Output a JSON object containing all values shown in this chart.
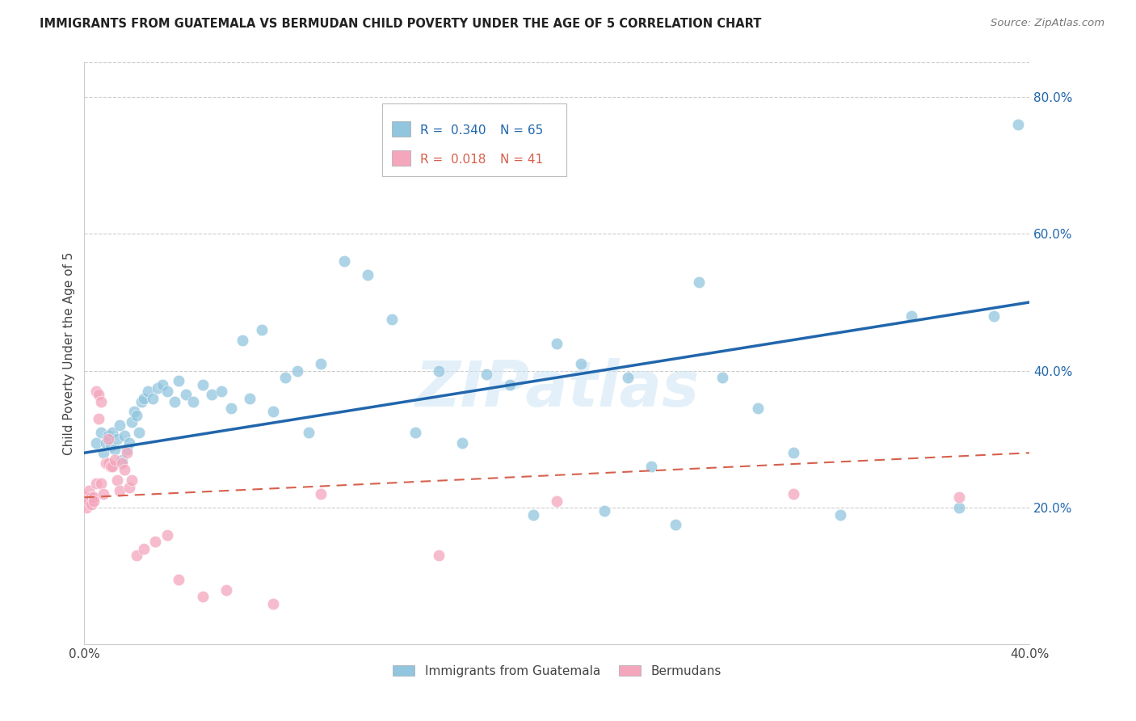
{
  "title": "IMMIGRANTS FROM GUATEMALA VS BERMUDAN CHILD POVERTY UNDER THE AGE OF 5 CORRELATION CHART",
  "source": "Source: ZipAtlas.com",
  "ylabel": "Child Poverty Under the Age of 5",
  "xlim": [
    0.0,
    0.4
  ],
  "ylim": [
    0.0,
    0.85
  ],
  "yticks": [
    0.2,
    0.4,
    0.6,
    0.8
  ],
  "ytick_labels": [
    "20.0%",
    "40.0%",
    "60.0%",
    "80.0%"
  ],
  "xticks": [
    0.0,
    0.1,
    0.2,
    0.3,
    0.4
  ],
  "xtick_labels": [
    "0.0%",
    "",
    "",
    "",
    "40.0%"
  ],
  "legend_r1": "0.340",
  "legend_n1": "65",
  "legend_r2": "0.018",
  "legend_n2": "41",
  "blue_color": "#92c5de",
  "blue_line_color": "#2166ac",
  "pink_color": "#f4a6bd",
  "pink_line_color": "#d6604d",
  "watermark": "ZIPatlas",
  "blue_scatter_x": [
    0.005,
    0.007,
    0.008,
    0.009,
    0.01,
    0.011,
    0.012,
    0.013,
    0.014,
    0.015,
    0.016,
    0.017,
    0.018,
    0.019,
    0.02,
    0.021,
    0.022,
    0.023,
    0.024,
    0.025,
    0.027,
    0.029,
    0.031,
    0.033,
    0.035,
    0.038,
    0.04,
    0.043,
    0.046,
    0.05,
    0.054,
    0.058,
    0.062,
    0.067,
    0.07,
    0.075,
    0.08,
    0.085,
    0.09,
    0.095,
    0.1,
    0.11,
    0.12,
    0.13,
    0.14,
    0.15,
    0.16,
    0.17,
    0.18,
    0.19,
    0.2,
    0.21,
    0.22,
    0.23,
    0.24,
    0.25,
    0.26,
    0.27,
    0.285,
    0.3,
    0.32,
    0.35,
    0.37,
    0.385,
    0.395
  ],
  "blue_scatter_y": [
    0.295,
    0.31,
    0.28,
    0.295,
    0.305,
    0.29,
    0.31,
    0.285,
    0.3,
    0.32,
    0.27,
    0.305,
    0.285,
    0.295,
    0.325,
    0.34,
    0.335,
    0.31,
    0.355,
    0.36,
    0.37,
    0.36,
    0.375,
    0.38,
    0.37,
    0.355,
    0.385,
    0.365,
    0.355,
    0.38,
    0.365,
    0.37,
    0.345,
    0.445,
    0.36,
    0.46,
    0.34,
    0.39,
    0.4,
    0.31,
    0.41,
    0.56,
    0.54,
    0.475,
    0.31,
    0.4,
    0.295,
    0.395,
    0.38,
    0.19,
    0.44,
    0.41,
    0.195,
    0.39,
    0.26,
    0.175,
    0.53,
    0.39,
    0.345,
    0.28,
    0.19,
    0.48,
    0.2,
    0.48,
    0.76
  ],
  "pink_scatter_x": [
    0.001,
    0.001,
    0.002,
    0.002,
    0.003,
    0.003,
    0.004,
    0.004,
    0.005,
    0.005,
    0.006,
    0.006,
    0.007,
    0.007,
    0.008,
    0.009,
    0.01,
    0.01,
    0.011,
    0.012,
    0.013,
    0.014,
    0.015,
    0.016,
    0.017,
    0.018,
    0.019,
    0.02,
    0.022,
    0.025,
    0.03,
    0.035,
    0.04,
    0.05,
    0.06,
    0.08,
    0.1,
    0.15,
    0.2,
    0.3,
    0.37
  ],
  "pink_scatter_y": [
    0.215,
    0.2,
    0.21,
    0.225,
    0.215,
    0.205,
    0.215,
    0.21,
    0.235,
    0.37,
    0.365,
    0.33,
    0.355,
    0.235,
    0.22,
    0.265,
    0.265,
    0.3,
    0.26,
    0.26,
    0.27,
    0.24,
    0.225,
    0.265,
    0.255,
    0.28,
    0.23,
    0.24,
    0.13,
    0.14,
    0.15,
    0.16,
    0.095,
    0.07,
    0.08,
    0.06,
    0.22,
    0.13,
    0.21,
    0.22,
    0.215
  ]
}
